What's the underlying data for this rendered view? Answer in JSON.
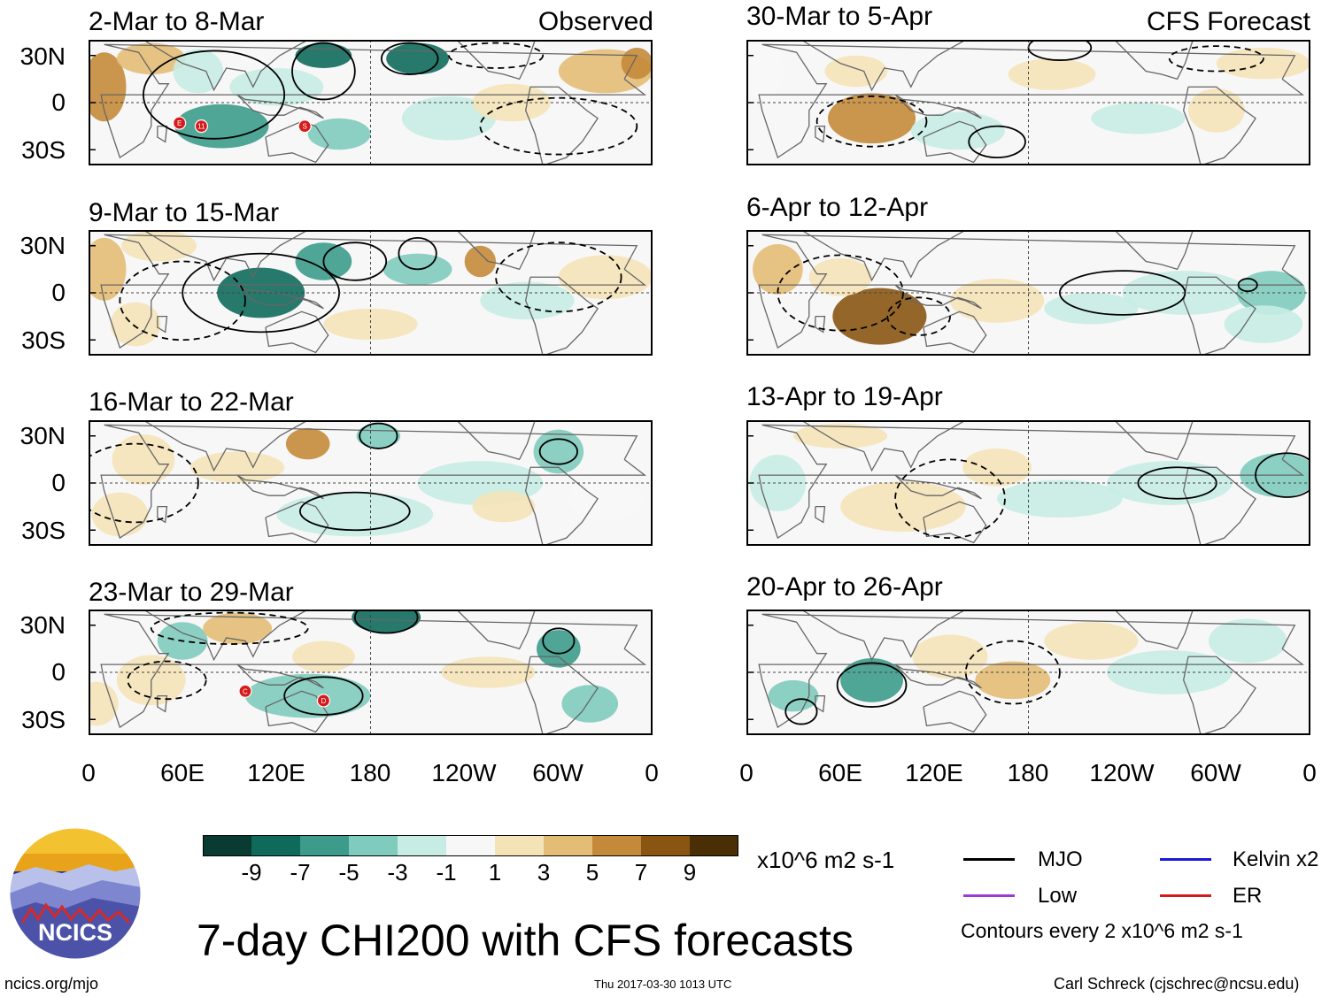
{
  "chart_data": {
    "type": "heatmap",
    "title": "7-day CHI200 with CFS forecasts",
    "variable": "CHI200",
    "units": "x10^6 m2 s-1",
    "contour_note": "Contours every 2 x10^6 m2 s-1",
    "column_tags": [
      "Observed",
      "CFS Forecast"
    ],
    "lat_ticks": [
      "30N",
      "0",
      "30S"
    ],
    "lon_ticks": [
      "0",
      "60E",
      "120E",
      "180",
      "120W",
      "60W",
      "0"
    ],
    "colorbar": {
      "ticks": [
        "-9",
        "-7",
        "-5",
        "-3",
        "-1",
        "1",
        "3",
        "5",
        "7",
        "9"
      ],
      "colors": [
        "#0a3b32",
        "#0f6a5c",
        "#3c9b8b",
        "#7fcbbd",
        "#c7ece3",
        "#f7f7f7",
        "#f5e3b8",
        "#e3bd76",
        "#c48a3a",
        "#8a5512",
        "#4a2e05"
      ]
    },
    "legend": [
      {
        "label": "MJO",
        "color": "#000000"
      },
      {
        "label": "Kelvin x2",
        "color": "#1a1ad6"
      },
      {
        "label": "Low",
        "color": "#9b3ad6"
      },
      {
        "label": "ER",
        "color": "#d61a1a"
      }
    ],
    "panels": [
      {
        "period": "2-Mar to 8-Mar",
        "kind": "Observed",
        "markers": [
          {
            "label": "E",
            "lon": 58,
            "lat": -13
          },
          {
            "label": "11",
            "lon": 72,
            "lat": -15
          },
          {
            "label": "S",
            "lon": 138,
            "lat": -15
          }
        ]
      },
      {
        "period": "9-Mar to 15-Mar",
        "kind": "Observed",
        "markers": []
      },
      {
        "period": "16-Mar to 22-Mar",
        "kind": "Observed",
        "markers": []
      },
      {
        "period": "23-Mar to 29-Mar",
        "kind": "Observed",
        "markers": [
          {
            "label": "C",
            "lon": 100,
            "lat": -12
          },
          {
            "label": "D",
            "lon": 150,
            "lat": -18
          }
        ]
      },
      {
        "period": "30-Mar to 5-Apr",
        "kind": "CFS Forecast",
        "markers": []
      },
      {
        "period": "6-Apr to 12-Apr",
        "kind": "CFS Forecast",
        "markers": []
      },
      {
        "period": "13-Apr to 19-Apr",
        "kind": "CFS Forecast",
        "markers": []
      },
      {
        "period": "20-Apr to 26-Apr",
        "kind": "CFS Forecast",
        "markers": []
      }
    ]
  },
  "logo": {
    "text": "NCICS"
  },
  "footer": {
    "url": "ncics.org/mjo",
    "timestamp": "Thu 2017-03-30 1013 UTC",
    "credit": "Carl Schreck (cjschrec@ncsu.edu)"
  }
}
